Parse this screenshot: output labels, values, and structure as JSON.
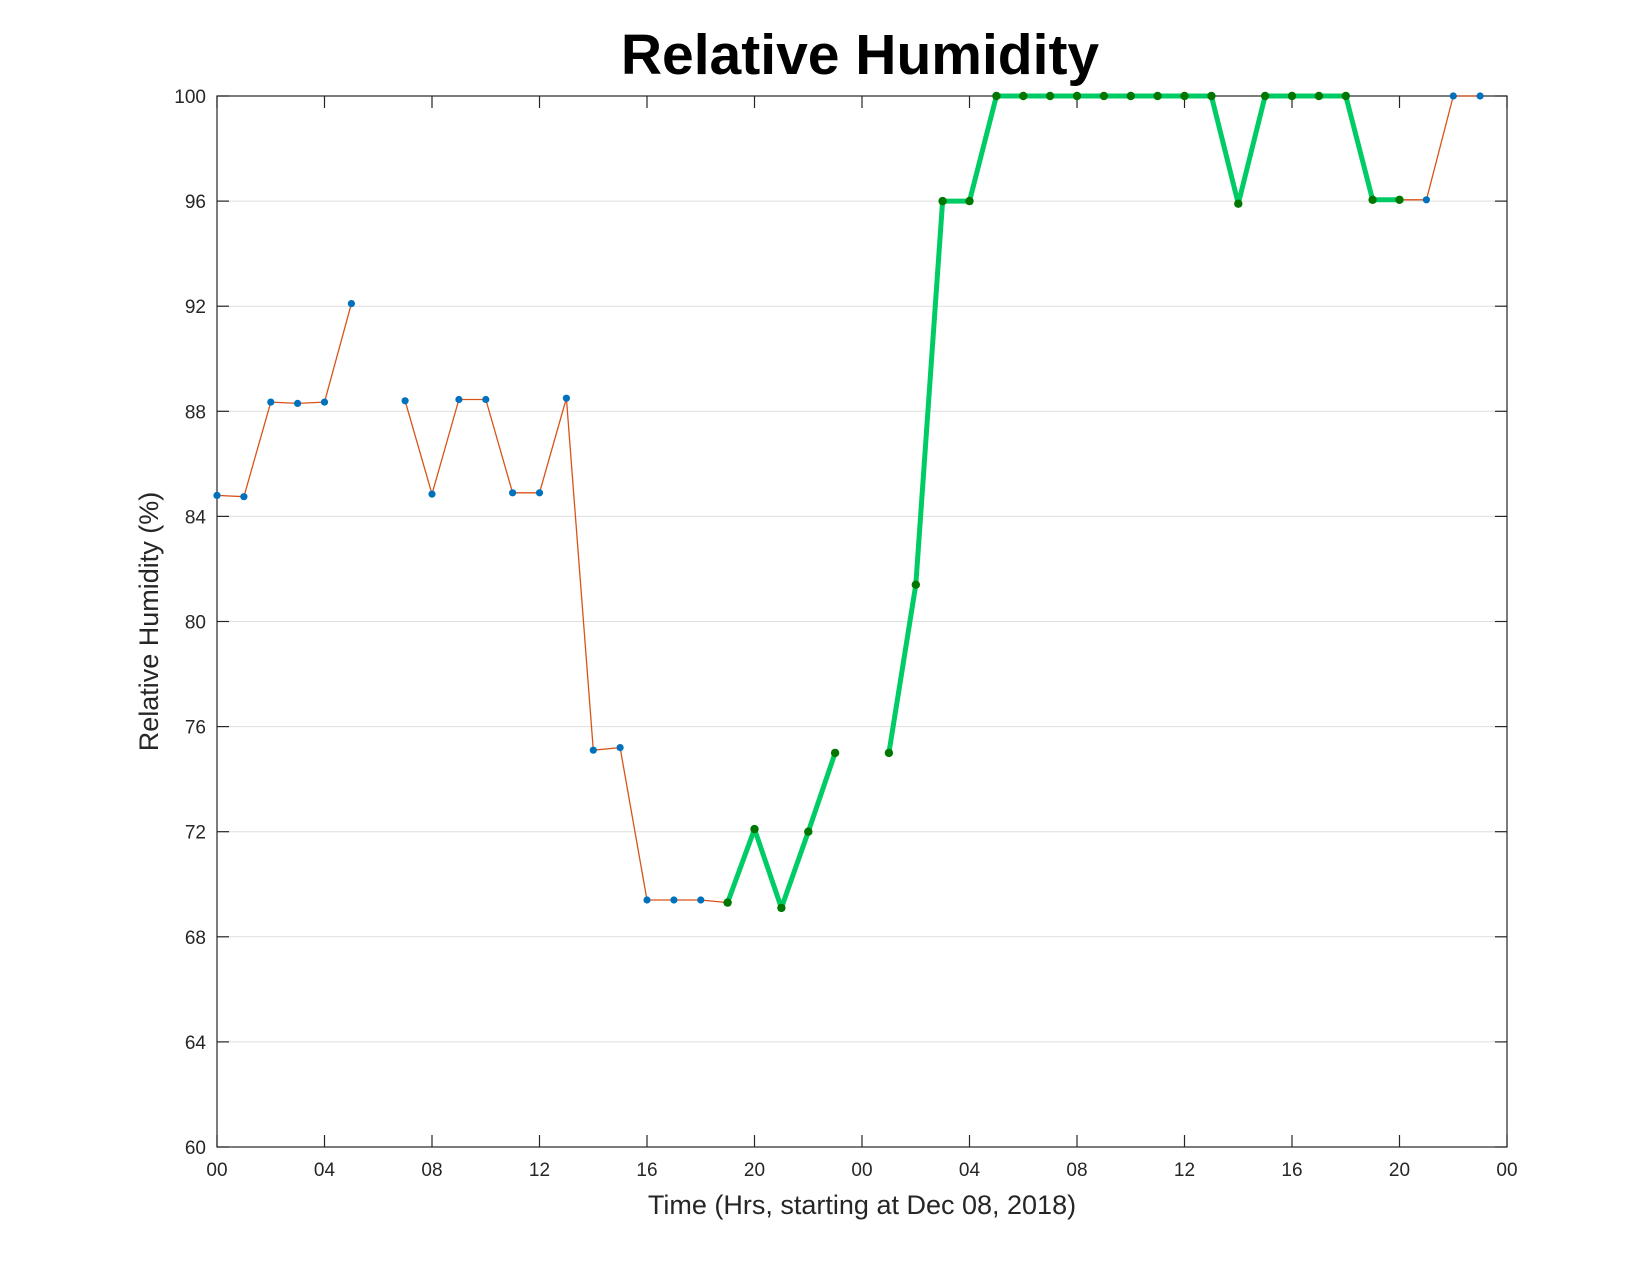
{
  "chart_data": {
    "type": "line",
    "title": "Relative Humidity",
    "xlabel": "Time (Hrs, starting at Dec 08, 2018)",
    "ylabel": "Relative Humidity (%)",
    "xlim": [
      0,
      48
    ],
    "ylim": [
      60,
      100
    ],
    "grid": "horizontal",
    "legend": "none",
    "x_ticks": [
      {
        "value": 0,
        "label": "00"
      },
      {
        "value": 4,
        "label": "04"
      },
      {
        "value": 8,
        "label": "08"
      },
      {
        "value": 12,
        "label": "12"
      },
      {
        "value": 16,
        "label": "16"
      },
      {
        "value": 20,
        "label": "20"
      },
      {
        "value": 24,
        "label": "00"
      },
      {
        "value": 28,
        "label": "04"
      },
      {
        "value": 32,
        "label": "08"
      },
      {
        "value": 36,
        "label": "12"
      },
      {
        "value": 40,
        "label": "16"
      },
      {
        "value": 44,
        "label": "20"
      },
      {
        "value": 48,
        "label": "00"
      }
    ],
    "y_ticks": [
      60,
      64,
      68,
      72,
      76,
      80,
      84,
      88,
      92,
      96,
      100
    ],
    "series": [
      {
        "color": "#D95319",
        "marker_color": "#0072BD",
        "points": [
          [
            0,
            84.8
          ],
          [
            1,
            84.75
          ],
          [
            2,
            88.35
          ],
          [
            3,
            88.3
          ],
          [
            4,
            88.35
          ],
          [
            5,
            92.1
          ],
          [
            7,
            88.4
          ],
          [
            8,
            84.85
          ],
          [
            9,
            88.45
          ],
          [
            10,
            88.45
          ],
          [
            11,
            84.9
          ],
          [
            12,
            84.9
          ],
          [
            13,
            88.5
          ],
          [
            14,
            75.1
          ],
          [
            15,
            75.2
          ],
          [
            16,
            69.4
          ],
          [
            17,
            69.4
          ],
          [
            18,
            69.4
          ],
          [
            19,
            69.3
          ],
          [
            20,
            72.1
          ],
          [
            21,
            69.1
          ],
          [
            22,
            72.0
          ],
          [
            23,
            75.0
          ],
          [
            25,
            75.0
          ],
          [
            26,
            81.4
          ],
          [
            27,
            96.0
          ],
          [
            28,
            96.0
          ],
          [
            29,
            100
          ],
          [
            30,
            100
          ],
          [
            31,
            100
          ],
          [
            32,
            100
          ],
          [
            33,
            100
          ],
          [
            34,
            100
          ],
          [
            35,
            100
          ],
          [
            36,
            100
          ],
          [
            37,
            100
          ],
          [
            38,
            95.9
          ],
          [
            39,
            100
          ],
          [
            40,
            100
          ],
          [
            41,
            100
          ],
          [
            42,
            100
          ],
          [
            43,
            96.05
          ],
          [
            44,
            96.05
          ],
          [
            45,
            96.05
          ],
          [
            46,
            100
          ],
          [
            47,
            100
          ]
        ]
      },
      {
        "color": "#00CC66",
        "marker_color": "#007700",
        "points": [
          [
            19,
            69.3
          ],
          [
            20,
            72.1
          ],
          [
            21,
            69.1
          ],
          [
            22,
            72.0
          ],
          [
            23,
            75.0
          ],
          [
            25,
            75.0
          ],
          [
            26,
            81.4
          ],
          [
            27,
            96.0
          ],
          [
            28,
            96.0
          ],
          [
            29,
            100
          ],
          [
            30,
            100
          ],
          [
            31,
            100
          ],
          [
            32,
            100
          ],
          [
            33,
            100
          ],
          [
            34,
            100
          ],
          [
            35,
            100
          ],
          [
            36,
            100
          ],
          [
            37,
            100
          ],
          [
            38,
            95.9
          ],
          [
            39,
            100
          ],
          [
            40,
            100
          ],
          [
            41,
            100
          ],
          [
            42,
            100
          ],
          [
            43,
            96.05
          ],
          [
            44,
            96.05
          ]
        ]
      }
    ]
  }
}
